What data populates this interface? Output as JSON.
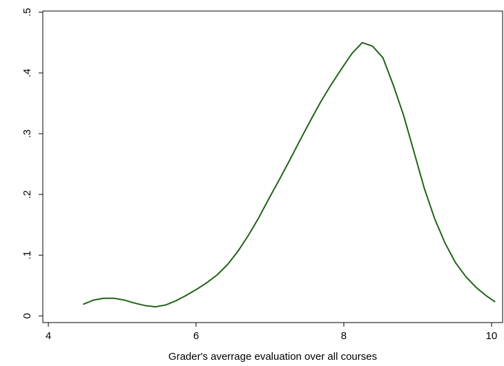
{
  "chart_data": {
    "type": "line",
    "x_label": "Grader's averrage evaluation over all courses",
    "x": [
      4.47,
      4.61,
      4.75,
      4.89,
      5.03,
      5.17,
      5.31,
      5.45,
      5.59,
      5.73,
      5.87,
      6.01,
      6.15,
      6.29,
      6.43,
      6.57,
      6.71,
      6.85,
      6.99,
      7.13,
      7.27,
      7.41,
      7.55,
      7.69,
      7.83,
      7.97,
      8.11,
      8.25,
      8.39,
      8.53,
      8.67,
      8.81,
      8.95,
      9.09,
      9.23,
      9.37,
      9.51,
      9.65,
      9.79,
      9.93,
      10.05
    ],
    "values": [
      0.019,
      0.026,
      0.029,
      0.029,
      0.026,
      0.021,
      0.017,
      0.015,
      0.018,
      0.025,
      0.034,
      0.044,
      0.055,
      0.068,
      0.085,
      0.107,
      0.133,
      0.162,
      0.194,
      0.225,
      0.257,
      0.29,
      0.322,
      0.353,
      0.381,
      0.407,
      0.432,
      0.45,
      0.444,
      0.425,
      0.38,
      0.33,
      0.27,
      0.21,
      0.16,
      0.12,
      0.088,
      0.065,
      0.047,
      0.033,
      0.023
    ],
    "color": "#1e6414",
    "xlim": [
      3.925,
      10.15
    ],
    "ylim": [
      -0.011,
      0.502
    ],
    "xticks": [
      4,
      6,
      8,
      10
    ],
    "yticks": [
      0,
      {
        "value": 0.1,
        "label": ".1"
      },
      {
        "value": 0.2,
        "label": ".2"
      },
      {
        "value": 0.3,
        "label": ".3"
      },
      {
        "value": 0.4,
        "label": ".4"
      },
      {
        "value": 0.5,
        "label": ".5"
      }
    ]
  }
}
